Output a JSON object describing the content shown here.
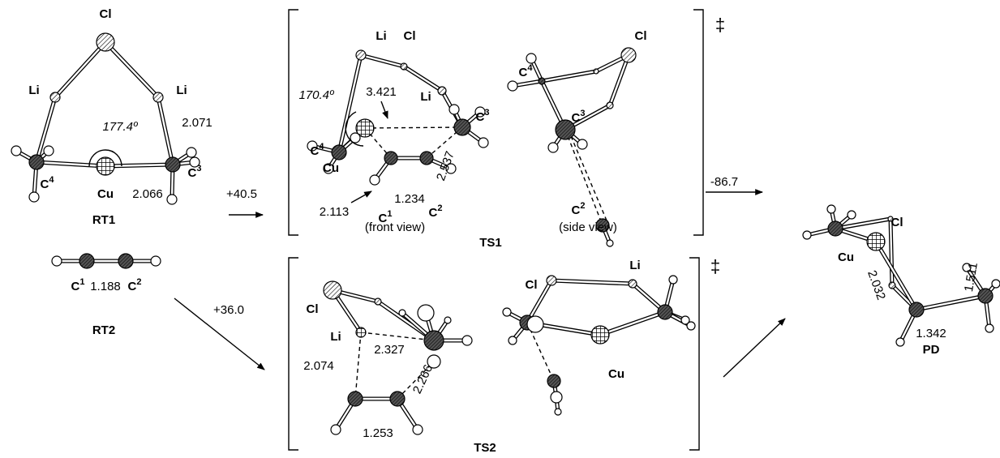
{
  "rt1": {
    "name": "RT1",
    "cl": "Cl",
    "li1": "Li",
    "li2": "Li",
    "c4": {
      "symbol": "C",
      "index": "4"
    },
    "c3": {
      "symbol": "C",
      "index": "3"
    },
    "cu": "Cu",
    "angle": "177.4º",
    "d_li_c3": "2.071",
    "d_cu_c3": "2.066"
  },
  "rt2": {
    "name": "RT2",
    "c1": {
      "symbol": "C",
      "index": "1"
    },
    "c2": {
      "symbol": "C",
      "index": "2"
    },
    "d_c1_c2": "1.188"
  },
  "steps": {
    "rt_to_ts1": "+40.5",
    "rt_to_ts2": "+36.0",
    "ts1_to_pd": "-86.7"
  },
  "ts1": {
    "name": "TS1",
    "dagger": "‡",
    "front": {
      "c4": {
        "symbol": "C",
        "index": "4"
      },
      "li1": "Li",
      "cl": "Cl",
      "li2": "Li",
      "c3": {
        "symbol": "C",
        "index": "3"
      },
      "angle": "170.4º",
      "d_cu_c3": "3.421",
      "cu": "Cu",
      "d_cu_c1": "2.113",
      "d_c1_c2": "1.234",
      "d_c2_c3": "2.537",
      "c1": {
        "symbol": "C",
        "index": "1"
      },
      "c2": {
        "symbol": "C",
        "index": "2"
      },
      "caption": "(front view)"
    },
    "side": {
      "c4": {
        "symbol": "C",
        "index": "4"
      },
      "c3": {
        "symbol": "C",
        "index": "3"
      },
      "cl": "Cl",
      "c2": {
        "symbol": "C",
        "index": "2"
      },
      "caption": "(side view)"
    }
  },
  "ts2": {
    "name": "TS2",
    "dagger": "‡",
    "left": {
      "cl": "Cl",
      "li": "Li",
      "d_li_c1": "2.074",
      "d_li_c": "2.327",
      "d_c2_c": "2.266",
      "d_c1_c2": "1.253"
    },
    "right": {
      "cl": "Cl",
      "li": "Li",
      "cu": "Cu"
    }
  },
  "pd": {
    "name": "PD",
    "cl": "Cl",
    "cu": "Cu",
    "d_cu_c": "2.032",
    "d_c_c": "1.342",
    "d_c_c2": "1.511"
  }
}
